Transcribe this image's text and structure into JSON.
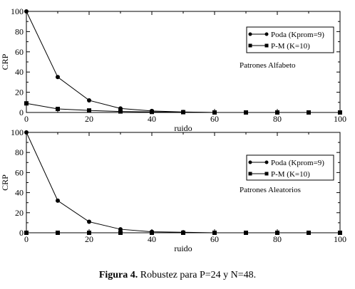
{
  "chart_data": [
    {
      "type": "line",
      "xlabel": "ruido",
      "ylabel": "CRP",
      "xlim": [
        0,
        100
      ],
      "ylim": [
        0,
        100
      ],
      "xticks": [
        0,
        20,
        40,
        60,
        80,
        100
      ],
      "yticks": [
        0,
        20,
        40,
        60,
        80,
        100
      ],
      "annotation": "Patrones Alfabeto",
      "legend_position": "top-right",
      "series": [
        {
          "name": "Poda (Kprom=9)",
          "marker": "circle",
          "x": [
            0,
            10,
            20,
            30,
            40,
            50,
            60,
            70,
            80,
            90,
            100
          ],
          "values": [
            100,
            35,
            12,
            4,
            1.5,
            0.5,
            0,
            0,
            0,
            0,
            0
          ]
        },
        {
          "name": "P-M (K=10)",
          "marker": "square",
          "x": [
            0,
            10,
            20,
            30,
            40,
            50,
            60,
            70,
            80,
            90,
            100
          ],
          "values": [
            9,
            3.5,
            2,
            1,
            0.5,
            0.3,
            0,
            0,
            0,
            0,
            0
          ]
        }
      ]
    },
    {
      "type": "line",
      "xlabel": "ruido",
      "ylabel": "CRP",
      "xlim": [
        0,
        100
      ],
      "ylim": [
        0,
        100
      ],
      "xticks": [
        0,
        20,
        40,
        60,
        80,
        100
      ],
      "yticks": [
        0,
        20,
        40,
        60,
        80,
        100
      ],
      "annotation": "Patrones Aleatorios",
      "legend_position": "top-right",
      "series": [
        {
          "name": "Poda (Kprom=9)",
          "marker": "circle",
          "x": [
            0,
            10,
            20,
            30,
            40,
            50,
            60,
            70,
            80,
            90,
            100
          ],
          "values": [
            100,
            32,
            11,
            3.5,
            1,
            0.5,
            0,
            0,
            0,
            0,
            0
          ]
        },
        {
          "name": "P-M (K=10)",
          "marker": "square",
          "x": [
            0,
            10,
            20,
            30,
            40,
            50,
            60,
            70,
            80,
            90,
            100
          ],
          "values": [
            0,
            0,
            0,
            0,
            0,
            0,
            0,
            0,
            0,
            0,
            0
          ]
        }
      ]
    }
  ],
  "caption": {
    "label": "Figura 4.",
    "text": " Robustez para P=24 y N=48."
  }
}
